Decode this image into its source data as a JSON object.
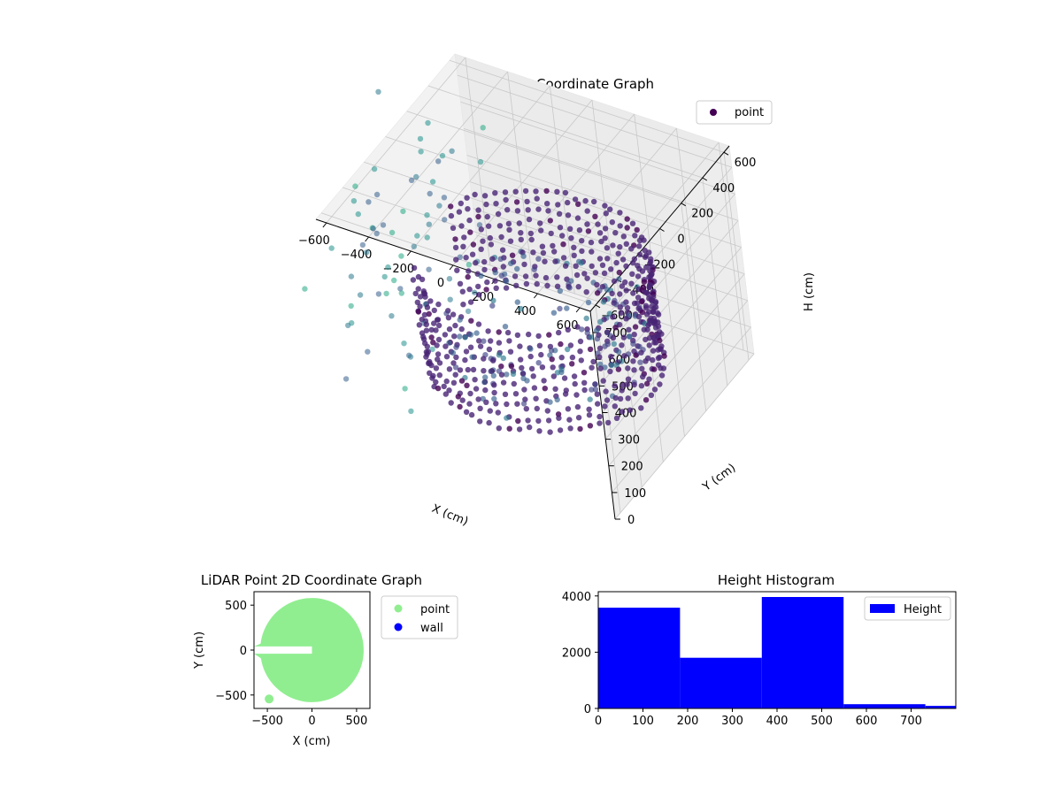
{
  "chart_data": [
    {
      "type": "scatter3d",
      "title": "LiDAR Point 3D Coordinate Graph",
      "xlabel": "X (cm)",
      "ylabel": "Y (cm)",
      "zlabel": "H (cm)",
      "xlim": [
        -650,
        650
      ],
      "ylim": [
        -650,
        650
      ],
      "zlim": [
        780,
        0
      ],
      "x_ticks": [
        -600,
        -400,
        -200,
        0,
        200,
        400,
        600
      ],
      "y_ticks": [
        -600,
        -400,
        -200,
        0,
        200,
        400,
        600
      ],
      "z_ticks": [
        0,
        100,
        200,
        300,
        400,
        500,
        600,
        700
      ],
      "legend": {
        "entries": [
          "point"
        ],
        "placement": "top-right",
        "colors": [
          "#440154"
        ]
      },
      "grid": true,
      "colormap": "viridis",
      "structure": {
        "ring_radius_cm": 500,
        "ring_height_range_cm": [
          120,
          480
        ],
        "ring_gap_angle_deg": 180,
        "scattered_outliers": "sparse points with large negative x values"
      }
    },
    {
      "type": "scatter",
      "title": "LiDAR Point 2D Coordinate Graph",
      "xlabel": "X (cm)",
      "ylabel": "Y (cm)",
      "xlim": [
        -650,
        650
      ],
      "ylim": [
        -650,
        650
      ],
      "x_ticks": [
        -500,
        0,
        500
      ],
      "y_ticks": [
        -500,
        0,
        500
      ],
      "series": [
        {
          "name": "point",
          "color": "#90ee90",
          "shape": "filled disc, radius about 600, opening to the left between y -50 and 50"
        },
        {
          "name": "wall",
          "color": "#0000ff",
          "count": 0
        }
      ],
      "legend": {
        "placement": "outside-right"
      }
    },
    {
      "type": "histogram",
      "title": "Height Histogram",
      "xlabel": "",
      "ylabel": "",
      "xlim": [
        0,
        800
      ],
      "ylim": [
        0,
        4150
      ],
      "x_ticks": [
        0,
        100,
        200,
        300,
        400,
        500,
        600,
        700
      ],
      "y_ticks": [
        0,
        2000,
        4000
      ],
      "bins": [
        0,
        183,
        366,
        549,
        732,
        915
      ],
      "values": [
        3580,
        1800,
        3960,
        150,
        90
      ],
      "series": [
        {
          "name": "Height",
          "color": "#0000ff"
        }
      ],
      "legend": {
        "placement": "top-right"
      }
    }
  ]
}
